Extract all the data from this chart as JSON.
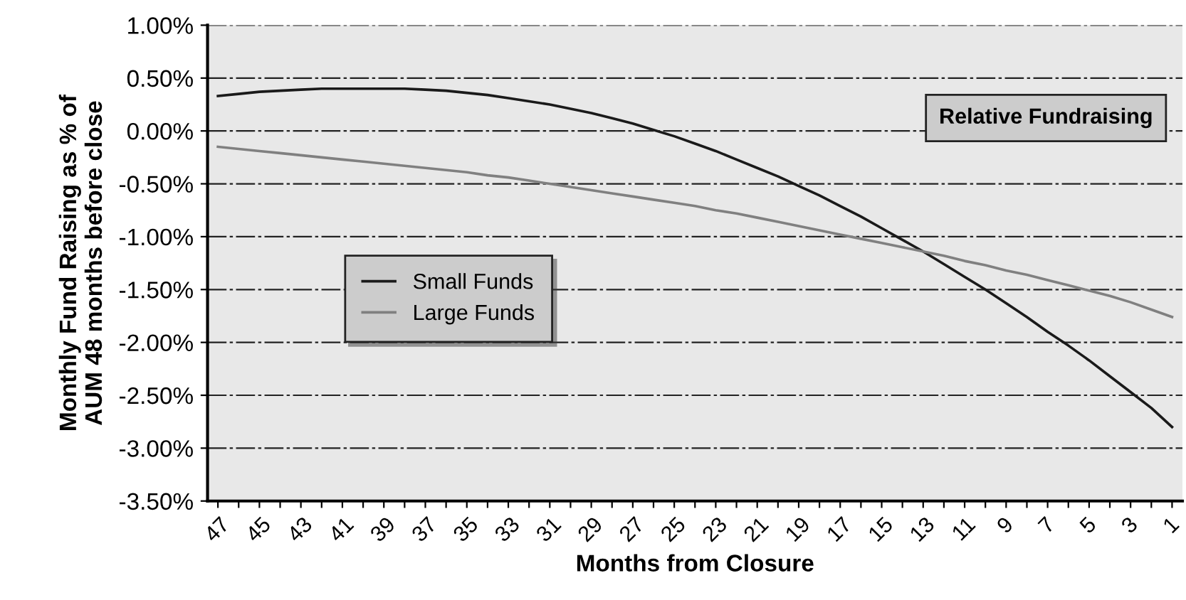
{
  "chart_data": {
    "type": "line",
    "xlabel": "Months from Closure",
    "ylabel": "Monthly Fund Raising as % of\nAUM 48 months before close",
    "categories": [
      "47",
      null,
      "45",
      null,
      "43",
      null,
      "41",
      null,
      "39",
      null,
      "37",
      null,
      "35",
      null,
      "33",
      null,
      "31",
      null,
      "29",
      null,
      "27",
      null,
      "25",
      null,
      "23",
      null,
      "21",
      null,
      "19",
      null,
      "17",
      null,
      "15",
      null,
      "13",
      null,
      "11",
      null,
      "9",
      null,
      "7",
      null,
      "5",
      null,
      "3",
      null,
      "1"
    ],
    "series": [
      {
        "name": "Small Funds",
        "color": "#1a1a1a",
        "values": [
          0.33,
          0.35,
          0.37,
          0.38,
          0.39,
          0.4,
          0.4,
          0.4,
          0.4,
          0.4,
          0.39,
          0.38,
          0.36,
          0.34,
          0.31,
          0.28,
          0.25,
          0.21,
          0.17,
          0.12,
          0.07,
          0.01,
          -0.05,
          -0.12,
          -0.19,
          -0.27,
          -0.35,
          -0.43,
          -0.52,
          -0.61,
          -0.71,
          -0.81,
          -0.92,
          -1.03,
          -1.14,
          -1.26,
          -1.38,
          -1.5,
          -1.63,
          -1.76,
          -1.9,
          -2.03,
          -2.17,
          -2.32,
          -2.47,
          -2.62,
          -2.8
        ]
      },
      {
        "name": "Large Funds",
        "color": "#808080",
        "values": [
          -0.15,
          -0.17,
          -0.19,
          -0.21,
          -0.23,
          -0.25,
          -0.27,
          -0.29,
          -0.31,
          -0.33,
          -0.35,
          -0.37,
          -0.39,
          -0.42,
          -0.44,
          -0.47,
          -0.5,
          -0.53,
          -0.56,
          -0.59,
          -0.62,
          -0.65,
          -0.68,
          -0.71,
          -0.75,
          -0.78,
          -0.82,
          -0.86,
          -0.9,
          -0.94,
          -0.98,
          -1.02,
          -1.06,
          -1.1,
          -1.14,
          -1.18,
          -1.23,
          -1.27,
          -1.32,
          -1.36,
          -1.41,
          -1.46,
          -1.51,
          -1.56,
          -1.62,
          -1.69,
          -1.76
        ]
      }
    ],
    "ylim": [
      -3.5,
      1.0
    ],
    "yticks": [
      {
        "value": 1.0,
        "label": "1.00%"
      },
      {
        "value": 0.5,
        "label": "0.50%"
      },
      {
        "value": 0,
        "label": "0.00%"
      },
      {
        "value": -0.5,
        "label": "-0.50%"
      },
      {
        "value": -1.0,
        "label": "-1.00%"
      },
      {
        "value": -1.5,
        "label": "-1.50%"
      },
      {
        "value": -2.0,
        "label": "-2.00%"
      },
      {
        "value": -2.5,
        "label": "-2.50%"
      },
      {
        "value": -3.0,
        "label": "-3.00%"
      },
      {
        "value": -3.5,
        "label": "-3.50%"
      }
    ],
    "grid": "y",
    "legend": "center left",
    "marker": "none",
    "line_style": "solid",
    "annotations": [
      "Relative Fundraising"
    ]
  }
}
